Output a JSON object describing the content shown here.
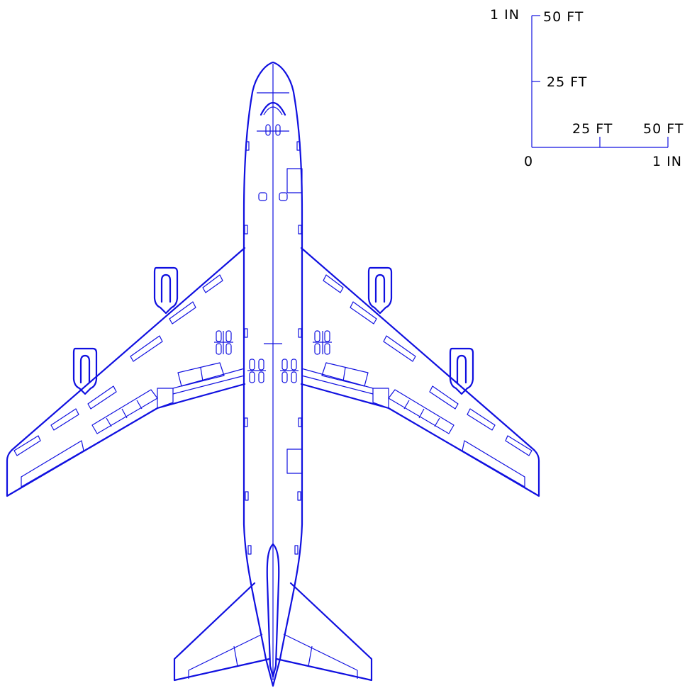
{
  "scale": {
    "vertical_top_left": "1 IN",
    "vertical_top_right": "50 FT",
    "vertical_mid": "25 FT",
    "origin": "0",
    "horizontal_mid": "25 FT",
    "horizontal_end_top": "50 FT",
    "horizontal_end_bottom": "1 IN"
  },
  "colors": {
    "linework": "#1010e0",
    "labels": "#000000",
    "background": "#ffffff"
  }
}
